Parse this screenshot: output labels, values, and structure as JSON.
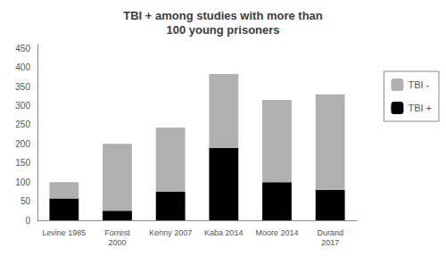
{
  "chart_data": {
    "type": "bar",
    "title": "TBI + among studies with more than\n100 young prisoners",
    "categories": [
      "Levine 1985",
      "Forrest\n2000",
      "Kenny 2007",
      "Kaba 2014",
      "Moore 2014",
      "Durand\n2017"
    ],
    "series": [
      {
        "name": "TBI +",
        "color": "#000000",
        "values": [
          57,
          25,
          75,
          190,
          100,
          80
        ]
      },
      {
        "name": "TBI -",
        "color": "#b0b0b0",
        "values": [
          43,
          175,
          168,
          193,
          215,
          250
        ]
      }
    ],
    "stacked": true,
    "ylim": [
      0,
      460
    ],
    "yticks": [
      0,
      50,
      100,
      150,
      200,
      250,
      300,
      350,
      400,
      450
    ],
    "grid": false,
    "legend": "right"
  }
}
